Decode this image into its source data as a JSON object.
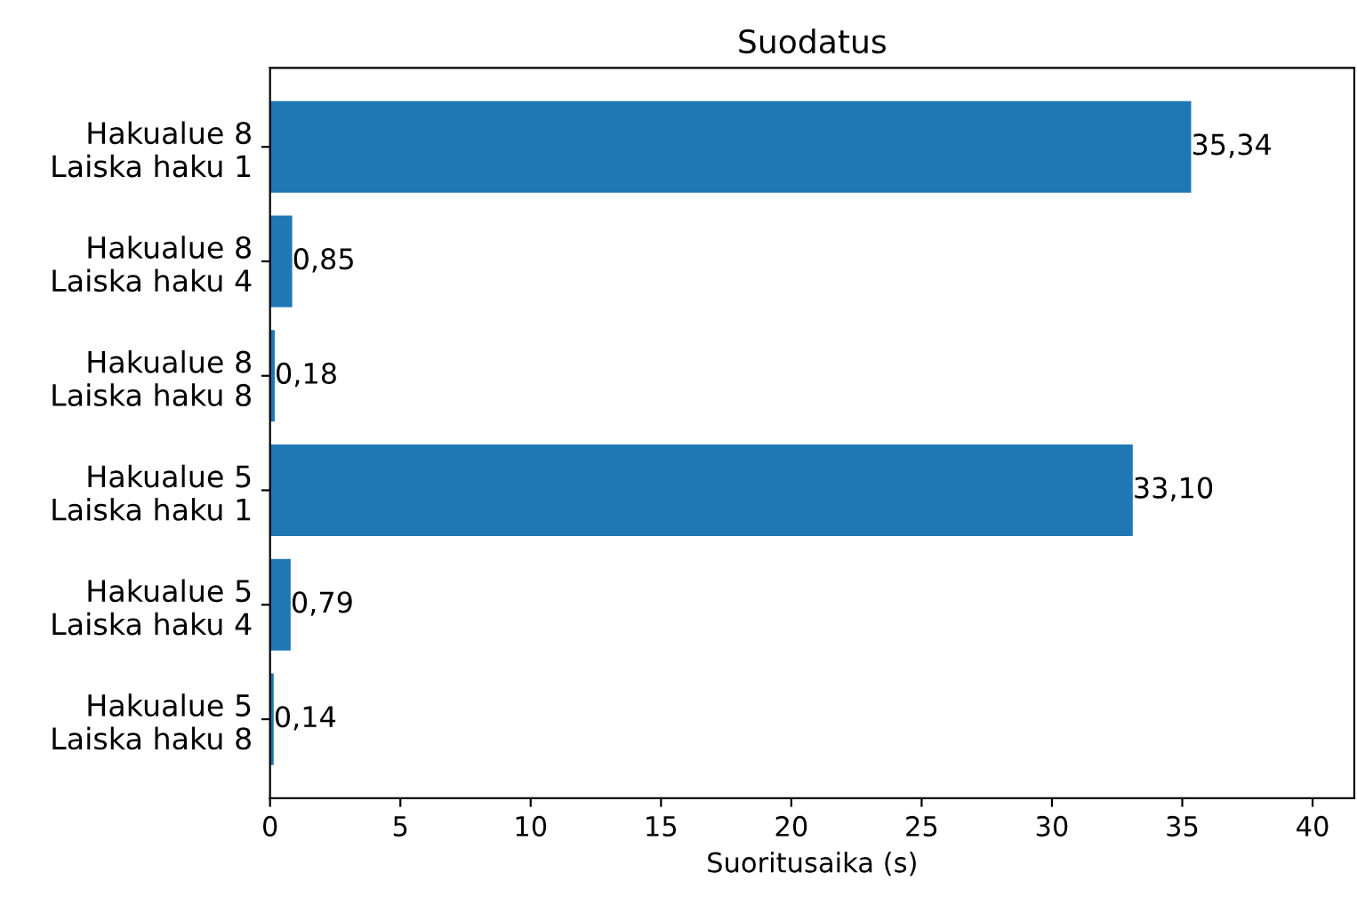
{
  "chart_data": {
    "type": "bar",
    "orientation": "horizontal",
    "title": "Suodatus",
    "xlabel": "Suoritusaika (s)",
    "categories": [
      "Hakualue 8\nLaiska haku 1",
      "Hakualue 8\nLaiska haku 4",
      "Hakualue 8\nLaiska haku 8",
      "Hakualue 5\nLaiska haku 1",
      "Hakualue 5\nLaiska haku 4",
      "Hakualue 5\nLaiska haku 8"
    ],
    "values": [
      35.34,
      0.85,
      0.18,
      33.1,
      0.79,
      0.14
    ],
    "value_labels": [
      "35,34",
      "0,85",
      "0,18",
      "33,10",
      "0,79",
      "0,14"
    ],
    "color": "#1f77b4",
    "xlim": [
      0,
      41.6
    ],
    "xticks": [
      0,
      5,
      10,
      15,
      20,
      25,
      30,
      35,
      40
    ],
    "grid": false
  }
}
